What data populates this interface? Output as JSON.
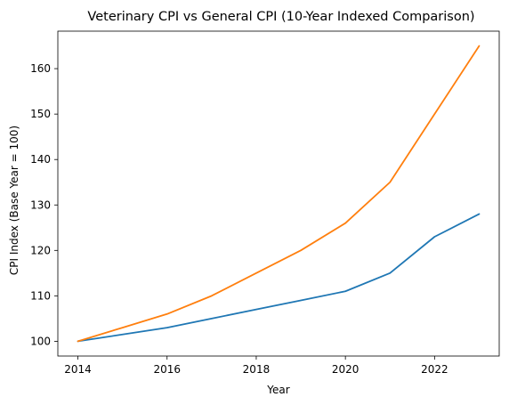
{
  "chart_data": {
    "type": "line",
    "title": "Veterinary CPI vs General CPI (10-Year Indexed Comparison)",
    "xlabel": "Year",
    "ylabel": "CPI Index (Base Year = 100)",
    "x": [
      2014,
      2015,
      2016,
      2017,
      2018,
      2019,
      2020,
      2021,
      2022,
      2023
    ],
    "xlim": [
      2013.55,
      2023.45
    ],
    "ylim": [
      96.75,
      168.25
    ],
    "xticks": [
      2014,
      2016,
      2018,
      2020,
      2022
    ],
    "yticks": [
      100,
      110,
      120,
      130,
      140,
      150,
      160
    ],
    "grid": false,
    "series": [
      {
        "color": "#1f77b4",
        "values": [
          100,
          101.5,
          103,
          105,
          107,
          109,
          111,
          115,
          123,
          128
        ]
      },
      {
        "color": "#ff7f0e",
        "values": [
          100,
          103,
          106,
          110,
          115,
          120,
          126,
          135,
          150,
          165
        ]
      }
    ]
  }
}
